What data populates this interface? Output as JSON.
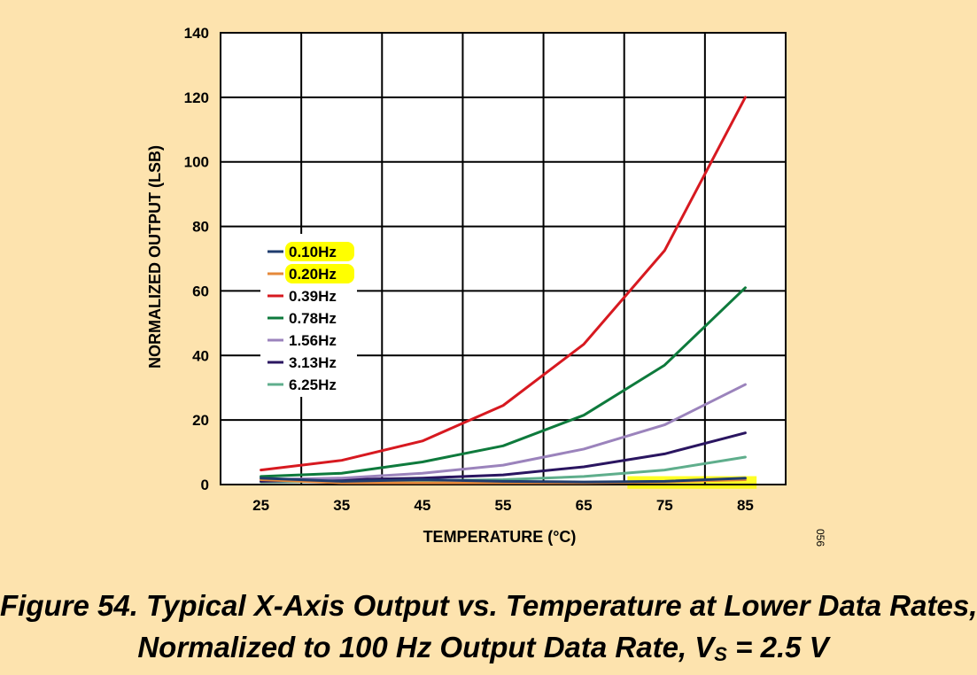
{
  "chart_data": {
    "type": "line",
    "xlabel": "TEMPERATURE (°C)",
    "ylabel": "NORMALIZED OUTPUT (LSB)",
    "xlim": [
      20,
      90
    ],
    "ylim": [
      0,
      140
    ],
    "x_ticks": [
      25,
      35,
      45,
      55,
      65,
      75,
      85
    ],
    "y_ticks": [
      0,
      20,
      40,
      60,
      80,
      100,
      120,
      140
    ],
    "grid": true,
    "legend_placement": "center-left",
    "x": [
      25,
      35,
      45,
      55,
      65,
      75,
      85
    ],
    "series": [
      {
        "name": "0.10Hz",
        "color": "#1F3C6E",
        "highlight": true,
        "values": [
          2.0,
          1.0,
          1.5,
          1.0,
          0.8,
          1.0,
          2.0
        ]
      },
      {
        "name": "0.20Hz",
        "color": "#E5883A",
        "highlight": true,
        "values": [
          1.5,
          0.5,
          0.5,
          0.5,
          0.5,
          0.8,
          1.5
        ]
      },
      {
        "name": "0.39Hz",
        "color": "#D71920",
        "highlight": false,
        "values": [
          4.5,
          7.5,
          13.5,
          24.5,
          43.5,
          72.5,
          120
        ]
      },
      {
        "name": "0.78Hz",
        "color": "#0E7A3C",
        "highlight": false,
        "values": [
          2.5,
          3.5,
          7.0,
          12.0,
          21.5,
          37.0,
          61
        ]
      },
      {
        "name": "1.56Hz",
        "color": "#9B83BC",
        "highlight": false,
        "values": [
          1.5,
          2.0,
          3.5,
          6.0,
          11.0,
          18.5,
          31
        ]
      },
      {
        "name": "3.13Hz",
        "color": "#2A1560",
        "highlight": false,
        "values": [
          1.0,
          1.5,
          2.0,
          3.0,
          5.5,
          9.5,
          16
        ]
      },
      {
        "name": "6.25Hz",
        "color": "#5FAE8C",
        "highlight": false,
        "values": [
          0.8,
          1.0,
          1.2,
          1.5,
          2.5,
          4.5,
          8.5
        ]
      }
    ],
    "annotations": [
      "056"
    ],
    "highlight_color": "#FFFF00"
  },
  "caption": {
    "line1": "Figure 54. Typical X-Axis Output vs. Temperature at Lower Data Rates,",
    "line2_before": "Normalized to 100 Hz Output Data Rate, V",
    "line2_sub": "S",
    "line2_after": " = 2.5 V"
  }
}
